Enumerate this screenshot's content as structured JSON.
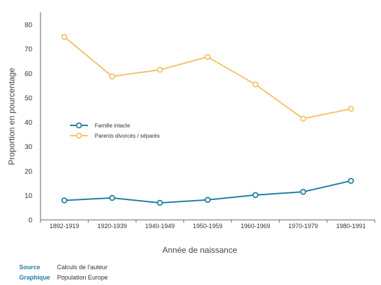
{
  "chart_data": {
    "type": "line",
    "categories": [
      "1892-1919",
      "1920-1939",
      "1940-1949",
      "1950-1959",
      "1960-1969",
      "1970-1979",
      "1980-1991"
    ],
    "series": [
      {
        "name": "Famille intacte",
        "color": "#1f7fa0",
        "values": [
          8.0,
          9.0,
          7.0,
          8.2,
          10.2,
          11.5,
          16.0
        ]
      },
      {
        "name": "Parents divorcés / séparés",
        "color": "#f2c36b",
        "values": [
          75.0,
          58.8,
          61.5,
          66.8,
          55.5,
          41.5,
          45.5
        ]
      }
    ],
    "xlabel": "Année de naissance",
    "ylabel": "Proportion en pourcentage",
    "ylim": [
      0,
      80
    ],
    "yticks": [
      0,
      10,
      20,
      30,
      40,
      50,
      60,
      70,
      80
    ],
    "legend_position": "center-left",
    "grid": false
  },
  "footer": {
    "source_label": "Source",
    "source_value": "Calculs de l'auteur",
    "graphic_label": "Graphique",
    "graphic_value": "Population Europe"
  }
}
